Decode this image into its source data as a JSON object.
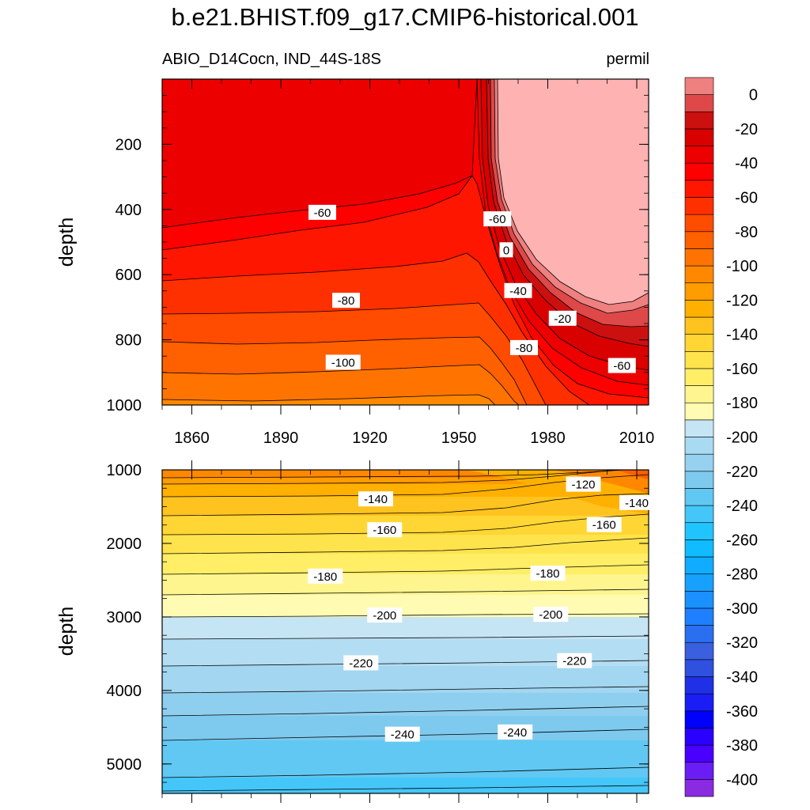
{
  "title": "b.e21.BHIST.f09_g17.CMIP6-historical.001",
  "subtitle_left": "ABIO_D14Cocn, IND_44S-18S",
  "subtitle_right": "permil",
  "chart_data": {
    "type": "contour",
    "variable": "ABIO_D14Cocn",
    "region": "IND_44S-18S",
    "units": "permil",
    "x_ticks": [
      "1860",
      "1890",
      "1920",
      "1950",
      "1980",
      "2010"
    ],
    "xlim": [
      1850,
      2014
    ],
    "panels": [
      {
        "name": "upper",
        "ylabel": "depth",
        "ylim": [
          0,
          1000
        ],
        "y_ticks": [
          "200",
          "400",
          "600",
          "800",
          "1000"
        ],
        "contour_labels": [
          {
            "text": "-60",
            "year": 1904,
            "depth": 410
          },
          {
            "text": "-60",
            "year": 1963,
            "depth": 430
          },
          {
            "text": "0",
            "year": 1966,
            "depth": 525
          },
          {
            "text": "-40",
            "year": 1970,
            "depth": 650
          },
          {
            "text": "-20",
            "year": 1985,
            "depth": 735
          },
          {
            "text": "-80",
            "year": 1912,
            "depth": 680
          },
          {
            "text": "-80",
            "year": 1972,
            "depth": 825
          },
          {
            "text": "-100",
            "year": 1911,
            "depth": 870
          },
          {
            "text": "-60",
            "year": 2005,
            "depth": 880
          }
        ]
      },
      {
        "name": "lower",
        "ylabel": "depth",
        "ylim": [
          1000,
          5400
        ],
        "y_ticks": [
          "1000",
          "2000",
          "3000",
          "4000",
          "5000"
        ],
        "contour_labels": [
          {
            "text": "-120",
            "year": 1992,
            "depth": 1200
          },
          {
            "text": "-140",
            "year": 1922,
            "depth": 1400
          },
          {
            "text": "-140",
            "year": 2010,
            "depth": 1450
          },
          {
            "text": "-160",
            "year": 1925,
            "depth": 1820
          },
          {
            "text": "-160",
            "year": 1999,
            "depth": 1750
          },
          {
            "text": "-180",
            "year": 1905,
            "depth": 2450
          },
          {
            "text": "-180",
            "year": 1980,
            "depth": 2410
          },
          {
            "text": "-200",
            "year": 1925,
            "depth": 2980
          },
          {
            "text": "-200",
            "year": 1981,
            "depth": 2970
          },
          {
            "text": "-220",
            "year": 1917,
            "depth": 3630
          },
          {
            "text": "-220",
            "year": 1989,
            "depth": 3600
          },
          {
            "text": "-240",
            "year": 1931,
            "depth": 4600
          },
          {
            "text": "-240",
            "year": 1969,
            "depth": 4570
          }
        ]
      }
    ],
    "colorbar": {
      "levels": [
        -410,
        -400,
        -390,
        -380,
        -370,
        -360,
        -350,
        -340,
        -330,
        -320,
        -310,
        -300,
        -290,
        -280,
        -270,
        -260,
        -250,
        -240,
        -230,
        -220,
        -210,
        -200,
        -190,
        -180,
        -170,
        -160,
        -150,
        -140,
        -130,
        -120,
        -110,
        -100,
        -90,
        -80,
        -70,
        -60,
        -50,
        -40,
        -30,
        -20,
        -10,
        0,
        10
      ],
      "labels": [
        "0",
        "-20",
        "-40",
        "-60",
        "-80",
        "-100",
        "-120",
        "-140",
        "-160",
        "-180",
        "-200",
        "-220",
        "-240",
        "-260",
        "-280",
        "-300",
        "-320",
        "-340",
        "-360",
        "-380",
        "-400"
      ],
      "colors": [
        "#8a2be2",
        "#6a1ef5",
        "#4a00ff",
        "#2a00ff",
        "#0000ff",
        "#1a1ef5",
        "#2030e6",
        "#3050e0",
        "#3a60e0",
        "#2a6ff0",
        "#1f80ff",
        "#1b90ff",
        "#18a0ff",
        "#10acff",
        "#10bcff",
        "#20c4ff",
        "#45c6f8",
        "#60c8f3",
        "#7ec9ee",
        "#96d2ef",
        "#a8dbf2",
        "#c6e5f4",
        "#fffbb2",
        "#fff58f",
        "#ffee66",
        "#ffe34d",
        "#ffd633",
        "#ffc31f",
        "#ffb000",
        "#ff9c00",
        "#ff8800",
        "#ff7400",
        "#ff6000",
        "#ff4c00",
        "#ff3000",
        "#ff1600",
        "#ff0000",
        "#ec0000",
        "#d90000",
        "#cc1010",
        "#de4848",
        "#ee8080",
        "#ffb2b2"
      ]
    }
  }
}
